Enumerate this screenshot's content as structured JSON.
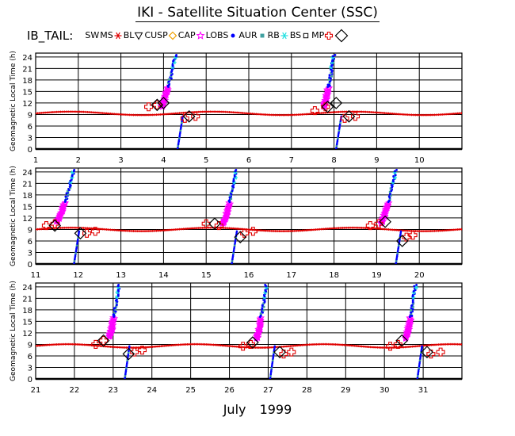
{
  "title": "IKI - Satellite Situation Center (SSC)",
  "satellite_label": "IB_TAIL:",
  "legend": [
    {
      "label": "SW",
      "symbol": "none",
      "color": "#000000"
    },
    {
      "label": "MS",
      "symbol": "asterisk",
      "color": "#e00000"
    },
    {
      "label": "BL",
      "symbol": "triangle-down",
      "color": "#000000"
    },
    {
      "label": "CUSP",
      "symbol": "diamond",
      "color": "#f0a000"
    },
    {
      "label": "CAP",
      "symbol": "star",
      "color": "#ff00ff"
    },
    {
      "label": "LOBS",
      "symbol": "dot",
      "color": "#0000ff"
    },
    {
      "label": "AUR",
      "symbol": "square",
      "color": "#40a0a0"
    },
    {
      "label": "RB",
      "symbol": "asterisk",
      "color": "#20e0e0"
    },
    {
      "label": "BS",
      "symbol": "square-open",
      "color": "#000000"
    },
    {
      "label": "MP",
      "symbol": "cross-open",
      "color": "#e00000"
    },
    {
      "label": "",
      "symbol": "diamond",
      "color": "#000000"
    }
  ],
  "month_label": "July   1999",
  "chart_data": [
    {
      "type": "scatter",
      "ylabel": "Geomagnetic Local Time (h)",
      "xlim": [
        1,
        11
      ],
      "ylim": [
        0,
        25
      ],
      "yticks": [
        "0",
        "3",
        "6",
        "9",
        "12",
        "15",
        "18",
        "21",
        "24"
      ],
      "xticks": [
        "1",
        "2",
        "3",
        "4",
        "5",
        "6",
        "7",
        "8",
        "9",
        "10"
      ],
      "ms_baseline": 9.3,
      "passes": [
        {
          "tail_start": 3.95,
          "tail_end": 4.28,
          "glt_low": 11.0,
          "glt_high": 24.5,
          "reentry": 4.33,
          "post_end": 4.75
        },
        {
          "tail_start": 7.75,
          "tail_end": 8.0,
          "glt_low": 11.0,
          "glt_high": 24.5,
          "reentry": 8.05,
          "post_end": 8.5
        }
      ],
      "mp_crossings": [
        {
          "x": 3.65,
          "y": 11
        },
        {
          "x": 3.85,
          "y": 11.5
        },
        {
          "x": 4.5,
          "y": 8
        },
        {
          "x": 4.75,
          "y": 8.5
        },
        {
          "x": 7.55,
          "y": 10
        },
        {
          "x": 7.8,
          "y": 11
        },
        {
          "x": 8.25,
          "y": 8
        },
        {
          "x": 8.5,
          "y": 8.5
        }
      ],
      "bs_crossings": [
        {
          "x": 3.85,
          "y": 11.5
        },
        {
          "x": 4.0,
          "y": 12
        },
        {
          "x": 4.6,
          "y": 8.5
        },
        {
          "x": 7.85,
          "y": 11
        },
        {
          "x": 8.05,
          "y": 12
        },
        {
          "x": 8.35,
          "y": 8.5
        }
      ]
    },
    {
      "type": "scatter",
      "ylabel": "Geomagnetic Local Time (h)",
      "xlim": [
        11,
        21
      ],
      "ylim": [
        0,
        25
      ],
      "yticks": [
        "0",
        "3",
        "6",
        "9",
        "12",
        "15",
        "18",
        "21",
        "24"
      ],
      "xticks": [
        "11",
        "12",
        "13",
        "14",
        "15",
        "16",
        "17",
        "18",
        "19",
        "20"
      ],
      "ms_baseline": 9.0,
      "passes": [
        {
          "tail_start": 11.5,
          "tail_end": 11.9,
          "glt_low": 11.0,
          "glt_high": 24.5,
          "reentry": 11.9,
          "post_end": 12.4
        },
        {
          "tail_start": 15.4,
          "tail_end": 15.7,
          "glt_low": 10.5,
          "glt_high": 24.5,
          "reentry": 15.6,
          "post_end": 16.1
        },
        {
          "tail_start": 19.1,
          "tail_end": 19.45,
          "glt_low": 10.5,
          "glt_high": 24.5,
          "reentry": 19.45,
          "post_end": 19.95
        }
      ],
      "mp_crossings": [
        {
          "x": 11.25,
          "y": 10
        },
        {
          "x": 11.45,
          "y": 10.5
        },
        {
          "x": 12.2,
          "y": 8
        },
        {
          "x": 12.4,
          "y": 8.5
        },
        {
          "x": 15.0,
          "y": 10.5
        },
        {
          "x": 15.3,
          "y": 10
        },
        {
          "x": 15.9,
          "y": 8
        },
        {
          "x": 16.1,
          "y": 8.5
        },
        {
          "x": 18.85,
          "y": 10
        },
        {
          "x": 19.05,
          "y": 10.5
        },
        {
          "x": 19.7,
          "y": 7
        },
        {
          "x": 19.85,
          "y": 7.5
        }
      ],
      "bs_crossings": [
        {
          "x": 11.45,
          "y": 10
        },
        {
          "x": 12.05,
          "y": 8
        },
        {
          "x": 15.2,
          "y": 10.5
        },
        {
          "x": 15.8,
          "y": 7
        },
        {
          "x": 19.2,
          "y": 11
        },
        {
          "x": 19.6,
          "y": 6
        }
      ]
    },
    {
      "type": "scatter",
      "ylabel": "Geomagnetic Local Time (h)",
      "xlim": [
        21,
        32
      ],
      "ylim": [
        0,
        25
      ],
      "yticks": [
        "0",
        "3",
        "6",
        "9",
        "12",
        "15",
        "18",
        "21",
        "24"
      ],
      "xticks": [
        "21",
        "22",
        "23",
        "24",
        "25",
        "26",
        "27",
        "28",
        "29",
        "30",
        "31"
      ],
      "ms_baseline": 8.6,
      "passes": [
        {
          "tail_start": 22.9,
          "tail_end": 23.15,
          "glt_low": 11.0,
          "glt_high": 24.5,
          "reentry": 23.3,
          "post_end": 23.75
        },
        {
          "tail_start": 26.7,
          "tail_end": 26.95,
          "glt_low": 10.5,
          "glt_high": 24.5,
          "reentry": 27.05,
          "post_end": 27.5
        },
        {
          "tail_start": 30.55,
          "tail_end": 30.8,
          "glt_low": 10.5,
          "glt_high": 24.5,
          "reentry": 30.85,
          "post_end": 31.3
        }
      ],
      "mp_crossings": [
        {
          "x": 22.55,
          "y": 9
        },
        {
          "x": 22.75,
          "y": 10
        },
        {
          "x": 23.55,
          "y": 7
        },
        {
          "x": 23.75,
          "y": 7.5
        },
        {
          "x": 26.35,
          "y": 8.5
        },
        {
          "x": 26.55,
          "y": 9
        },
        {
          "x": 27.4,
          "y": 6.5
        },
        {
          "x": 27.6,
          "y": 7
        },
        {
          "x": 30.15,
          "y": 8.5
        },
        {
          "x": 30.35,
          "y": 9
        },
        {
          "x": 31.2,
          "y": 6.5
        },
        {
          "x": 31.45,
          "y": 7
        }
      ],
      "bs_crossings": [
        {
          "x": 22.75,
          "y": 10
        },
        {
          "x": 23.4,
          "y": 6.5
        },
        {
          "x": 26.6,
          "y": 9.5
        },
        {
          "x": 27.3,
          "y": 7
        },
        {
          "x": 30.45,
          "y": 10
        },
        {
          "x": 31.1,
          "y": 7
        }
      ]
    }
  ]
}
